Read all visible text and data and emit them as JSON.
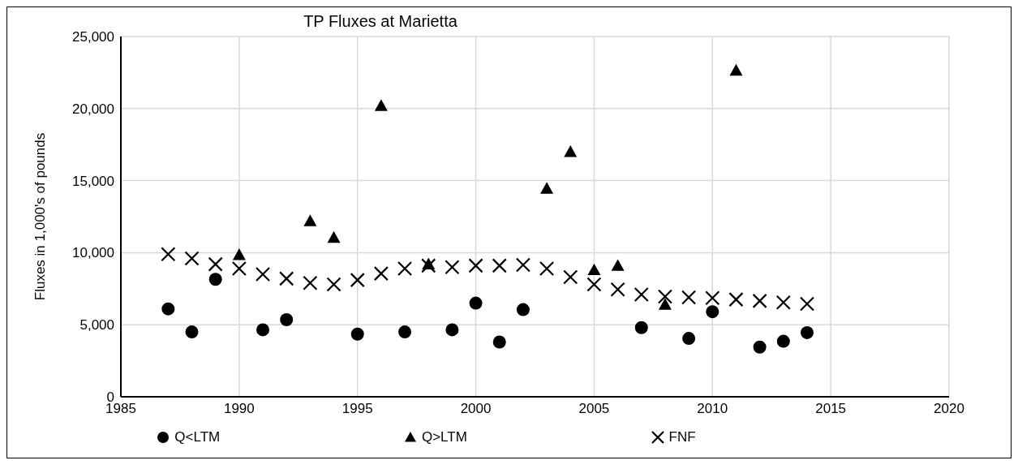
{
  "chart_data": {
    "type": "scatter",
    "title": "TP Fluxes at Marietta",
    "ylabel": "Fluxes in 1,000's of pounds",
    "xlim": [
      1985,
      2020
    ],
    "xticks": [
      1985,
      1990,
      1995,
      2000,
      2005,
      2010,
      2015,
      2020
    ],
    "ylim": [
      0,
      25000
    ],
    "yticks": [
      {
        "value": 0,
        "label": "0"
      },
      {
        "value": 5000,
        "label": "5,000"
      },
      {
        "value": 10000,
        "label": "10,000"
      },
      {
        "value": 15000,
        "label": "15,000"
      },
      {
        "value": 20000,
        "label": "20,000"
      },
      {
        "value": 25000,
        "label": "25,000"
      }
    ],
    "grid": true,
    "legend": "bottom",
    "series": [
      {
        "name": "Q<LTM",
        "color": "#000000",
        "marker": "circle",
        "x": [
          1987,
          1988,
          1989,
          1991,
          1992,
          1995,
          1997,
          1999,
          2000,
          2001,
          2002,
          2007,
          2009,
          2010,
          2012,
          2013,
          2014
        ],
        "values": [
          6100,
          4500,
          8150,
          4650,
          5350,
          4350,
          4500,
          4650,
          6500,
          3800,
          6050,
          4800,
          4050,
          5900,
          3450,
          3850,
          4450
        ]
      },
      {
        "name": "Q>LTM",
        "color": "#000000",
        "marker": "triangle",
        "x": [
          1990,
          1993,
          1994,
          1996,
          1998,
          2003,
          2004,
          2005,
          2006,
          2008,
          2011
        ],
        "values": [
          9850,
          12200,
          11050,
          20200,
          9200,
          14450,
          17000,
          8800,
          9100,
          6400,
          22650
        ]
      },
      {
        "name": "FNF",
        "color": "#000000",
        "marker": "cross",
        "x": [
          1987,
          1988,
          1989,
          1990,
          1991,
          1992,
          1993,
          1994,
          1995,
          1996,
          1997,
          1998,
          1999,
          2000,
          2001,
          2002,
          2003,
          2004,
          2005,
          2006,
          2007,
          2008,
          2009,
          2010,
          2011,
          2012,
          2013,
          2014
        ],
        "values": [
          9900,
          9600,
          9200,
          8900,
          8500,
          8200,
          7900,
          7800,
          8100,
          8550,
          8900,
          9100,
          9000,
          9100,
          9100,
          9150,
          8900,
          8300,
          7800,
          7450,
          7100,
          6950,
          6900,
          6850,
          6750,
          6650,
          6550,
          6450
        ]
      }
    ]
  }
}
